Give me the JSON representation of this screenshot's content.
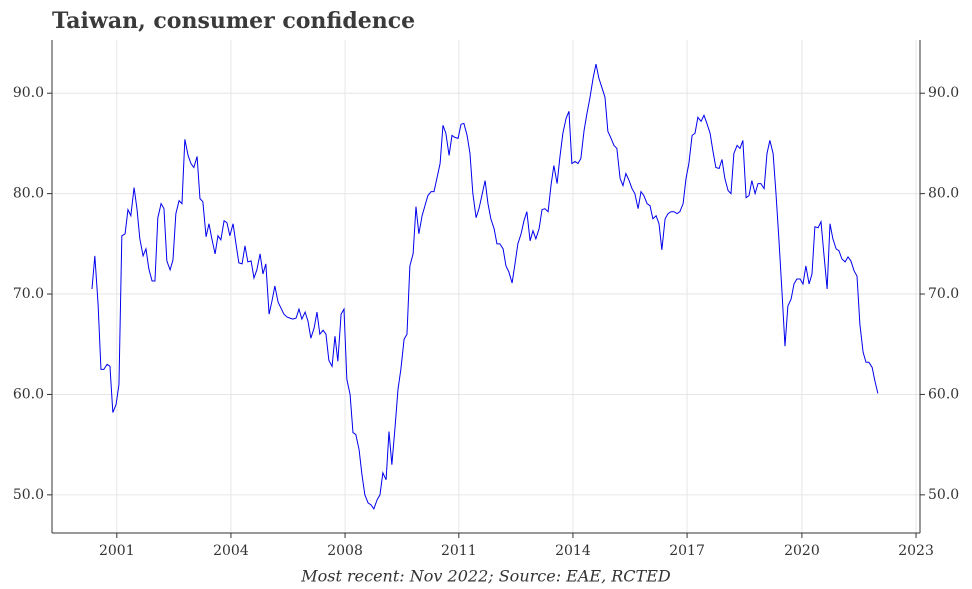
{
  "chart_data": {
    "type": "line",
    "title": "Taiwan, consumer confidence",
    "footnote": "Most recent: Nov 2022; Source: EAE, RCTED",
    "color": "#0000ee",
    "grid": true,
    "xlim": [
      1999.89,
      2024.0
    ],
    "ylim": [
      46.2,
      95.3
    ],
    "xticks": [
      {
        "value": 2001.69,
        "label": "2001"
      },
      {
        "value": 2004.86,
        "label": "2004"
      },
      {
        "value": 2008.03,
        "label": "2008"
      },
      {
        "value": 2011.19,
        "label": "2011"
      },
      {
        "value": 2014.36,
        "label": "2014"
      },
      {
        "value": 2017.53,
        "label": "2017"
      },
      {
        "value": 2020.72,
        "label": "2020"
      },
      {
        "value": 2023.89,
        "label": "2023"
      }
    ],
    "yticks": [
      {
        "value": 50,
        "label": "50.0"
      },
      {
        "value": 60,
        "label": "60.0"
      },
      {
        "value": 70,
        "label": "70.0"
      },
      {
        "value": 80,
        "label": "80.0"
      },
      {
        "value": 90,
        "label": "90.0"
      }
    ],
    "x": [
      2001.0,
      2001.08,
      2001.17,
      2001.25,
      2001.33,
      2001.42,
      2001.5,
      2001.58,
      2001.67,
      2001.75,
      2001.83,
      2001.92,
      2002.0,
      2002.08,
      2002.17,
      2002.25,
      2002.33,
      2002.42,
      2002.5,
      2002.58,
      2002.67,
      2002.75,
      2002.83,
      2002.92,
      2003.0,
      2003.08,
      2003.17,
      2003.25,
      2003.33,
      2003.42,
      2003.5,
      2003.58,
      2003.67,
      2003.75,
      2003.83,
      2003.92,
      2004.0,
      2004.08,
      2004.17,
      2004.25,
      2004.33,
      2004.42,
      2004.5,
      2004.58,
      2004.67,
      2004.75,
      2004.83,
      2004.92,
      2005.0,
      2005.08,
      2005.17,
      2005.25,
      2005.33,
      2005.42,
      2005.5,
      2005.58,
      2005.67,
      2005.75,
      2005.83,
      2005.92,
      2006.0,
      2006.08,
      2006.17,
      2006.25,
      2006.33,
      2006.42,
      2006.5,
      2006.58,
      2006.67,
      2006.75,
      2006.83,
      2006.92,
      2007.0,
      2007.08,
      2007.17,
      2007.25,
      2007.33,
      2007.42,
      2007.5,
      2007.58,
      2007.67,
      2007.75,
      2007.83,
      2007.92,
      2008.0,
      2008.08,
      2008.17,
      2008.25,
      2008.33,
      2008.42,
      2008.5,
      2008.58,
      2008.67,
      2008.75,
      2008.83,
      2008.92,
      2009.0,
      2009.08,
      2009.17,
      2009.25,
      2009.33,
      2009.42,
      2009.5,
      2009.58,
      2009.67,
      2009.75,
      2009.83,
      2009.92,
      2010.0,
      2010.08,
      2010.17,
      2010.25,
      2010.33,
      2010.42,
      2010.5,
      2010.58,
      2010.67,
      2010.75,
      2010.83,
      2010.92,
      2011.0,
      2011.08,
      2011.17,
      2011.25,
      2011.33,
      2011.42,
      2011.5,
      2011.58,
      2011.67,
      2011.75,
      2011.83,
      2011.92,
      2012.0,
      2012.08,
      2012.17,
      2012.25,
      2012.33,
      2012.42,
      2012.5,
      2012.58,
      2012.67,
      2012.75,
      2012.83,
      2012.92,
      2013.0,
      2013.08,
      2013.17,
      2013.25,
      2013.33,
      2013.42,
      2013.5,
      2013.58,
      2013.67,
      2013.75,
      2013.83,
      2013.92,
      2014.0,
      2014.08,
      2014.17,
      2014.25,
      2014.33,
      2014.42,
      2014.5,
      2014.58,
      2014.67,
      2014.75,
      2014.83,
      2014.92,
      2015.0,
      2015.08,
      2015.17,
      2015.25,
      2015.33,
      2015.42,
      2015.5,
      2015.58,
      2015.67,
      2015.75,
      2015.83,
      2015.92,
      2016.0,
      2016.08,
      2016.17,
      2016.25,
      2016.33,
      2016.42,
      2016.5,
      2016.58,
      2016.67,
      2016.75,
      2016.83,
      2016.92,
      2017.0,
      2017.08,
      2017.17,
      2017.25,
      2017.33,
      2017.42,
      2017.5,
      2017.58,
      2017.67,
      2017.75,
      2017.83,
      2017.92,
      2018.0,
      2018.08,
      2018.17,
      2018.25,
      2018.33,
      2018.42,
      2018.5,
      2018.58,
      2018.67,
      2018.75,
      2018.83,
      2018.92,
      2019.0,
      2019.08,
      2019.17,
      2019.25,
      2019.33,
      2019.42,
      2019.5,
      2019.58,
      2019.67,
      2019.75,
      2019.83,
      2019.92,
      2020.0,
      2020.08,
      2020.17,
      2020.25,
      2020.33,
      2020.42,
      2020.5,
      2020.58,
      2020.67,
      2020.75,
      2020.83,
      2020.92,
      2021.0,
      2021.08,
      2021.17,
      2021.25,
      2021.33,
      2021.42,
      2021.5,
      2021.58,
      2021.67,
      2021.75,
      2021.83,
      2021.92,
      2022.0,
      2022.08,
      2022.17,
      2022.25,
      2022.33,
      2022.42,
      2022.5,
      2022.58,
      2022.67,
      2022.75,
      2022.83
    ],
    "values": [
      70.5,
      73.8,
      69,
      62.5,
      62.5,
      63,
      62.8,
      58.2,
      59,
      61,
      75.8,
      76,
      78.4,
      77.8,
      80.6,
      78.5,
      75.5,
      73.8,
      74.5,
      72.5,
      71.3,
      71.3,
      77.6,
      79.0,
      78.5,
      73.3,
      72.4,
      73.4,
      78.0,
      79.3,
      79.0,
      85.4,
      83.8,
      83.0,
      82.6,
      83.7,
      79.5,
      79.2,
      75.7,
      77.0,
      75.5,
      74.0,
      75.8,
      75.4,
      77.3,
      77.1,
      75.8,
      77.0,
      75.0,
      73.1,
      73.0,
      74.8,
      73.2,
      73.3,
      71.6,
      72.4,
      74.0,
      72.0,
      73.0,
      68.0,
      69.3,
      70.8,
      69.2,
      68.6,
      68.0,
      67.7,
      67.6,
      67.5,
      67.6,
      68.5,
      67.5,
      68.2,
      67.3,
      65.6,
      66.6,
      68.2,
      66.0,
      66.4,
      66.0,
      63.4,
      62.8,
      65.8,
      63.3,
      68.0,
      68.5,
      61.5,
      60.0,
      56.2,
      56.0,
      54.5,
      52.0,
      50.0,
      49.2,
      49.0,
      48.6,
      49.5,
      50.0,
      52.2,
      51.5,
      56.3,
      53.0,
      56.8,
      60.5,
      62.5,
      65.5,
      66.0,
      72.8,
      74.0,
      78.7,
      76.0,
      77.8,
      78.8,
      79.8,
      80.2,
      80.2,
      81.5,
      83.0,
      86.8,
      86.0,
      83.8,
      85.8,
      85.6,
      85.5,
      86.9,
      87.0,
      85.8,
      84.0,
      80.0,
      77.6,
      78.5,
      79.8,
      81.3,
      79.0,
      77.5,
      76.5,
      75.0,
      75.0,
      74.5,
      72.8,
      72.2,
      71.1,
      73.0,
      75.0,
      76.0,
      77.3,
      78.2,
      75.3,
      76.3,
      75.5,
      76.5,
      78.4,
      78.5,
      78.2,
      80.8,
      82.8,
      81.0,
      83.7,
      86.0,
      87.5,
      88.2,
      83.0,
      83.2,
      83.0,
      83.5,
      86.3,
      88.0,
      89.5,
      91.5,
      92.9,
      91.5,
      90.5,
      89.6,
      86.2,
      85.5,
      84.8,
      84.5,
      81.5,
      80.8,
      82.0,
      81.3,
      80.5,
      80.0,
      78.5,
      80.2,
      79.8,
      79.0,
      78.8,
      77.5,
      77.8,
      77.0,
      74.4,
      77.5,
      78.0,
      78.2,
      78.2,
      78.0,
      78.2,
      79.0,
      81.5,
      83.0,
      85.8,
      86.0,
      87.6,
      87.2,
      87.8,
      87.0,
      86.0,
      84.2,
      82.6,
      82.5,
      83.4,
      81.5,
      80.3,
      80.0,
      84.0,
      84.8,
      84.5,
      85.3,
      79.6,
      79.8,
      81.3,
      80.0,
      81.0,
      81.0,
      80.5,
      84.0,
      85.3,
      84.0,
      80.0,
      75.5,
      70.0,
      64.8,
      68.8,
      69.5,
      71.0,
      71.5,
      71.5,
      71.0,
      72.8,
      71.0,
      72.0,
      76.7,
      76.6,
      77.2,
      74.0,
      70.5,
      77.0,
      75.5,
      74.5,
      74.3,
      73.5,
      73.2,
      73.7,
      73.3,
      72.3,
      71.8,
      67.0,
      64.2,
      63.2,
      63.2,
      62.7,
      61.3,
      60.1
    ]
  }
}
